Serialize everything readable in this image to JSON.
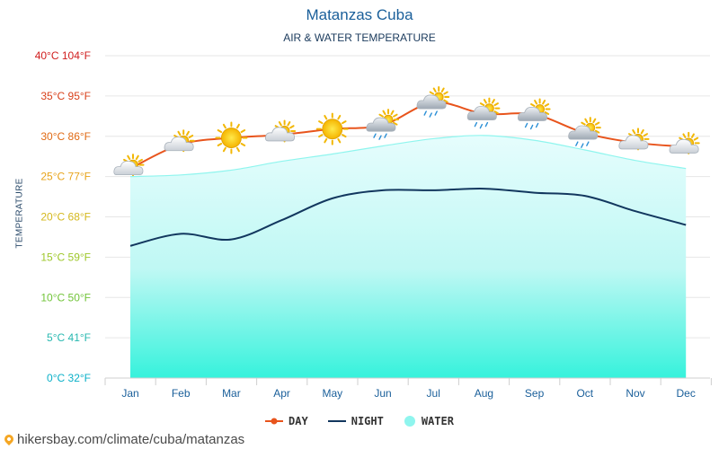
{
  "chart_data": {
    "type": "line",
    "title": "Matanzas Cuba",
    "subtitle": "AIR & WATER TEMPERATURE",
    "ylabel": "TEMPERATURE",
    "xlabel": "",
    "categories": [
      "Jan",
      "Feb",
      "Mar",
      "Apr",
      "May",
      "Jun",
      "Jul",
      "Aug",
      "Sep",
      "Oct",
      "Nov",
      "Dec"
    ],
    "ylim": [
      0,
      40
    ],
    "y_ticks": [
      {
        "value": 0,
        "label": "0°C 32°F",
        "color": "#0ab0c8"
      },
      {
        "value": 5,
        "label": "5°C 41°F",
        "color": "#27b8b0"
      },
      {
        "value": 10,
        "label": "10°C 50°F",
        "color": "#72c43a"
      },
      {
        "value": 15,
        "label": "15°C 59°F",
        "color": "#9ec72a"
      },
      {
        "value": 20,
        "label": "20°C 68°F",
        "color": "#d4b81e"
      },
      {
        "value": 25,
        "label": "25°C 77°F",
        "color": "#e8a41a"
      },
      {
        "value": 30,
        "label": "30°C 86°F",
        "color": "#e06a14"
      },
      {
        "value": 35,
        "label": "35°C 95°F",
        "color": "#d8401a"
      },
      {
        "value": 40,
        "label": "40°C 104°F",
        "color": "#d01e1e"
      }
    ],
    "series": [
      {
        "name": "DAY",
        "color": "#e8541c",
        "values": [
          26.0,
          29.0,
          29.8,
          30.2,
          30.9,
          31.4,
          34.2,
          32.8,
          32.7,
          30.4,
          29.2,
          28.7
        ]
      },
      {
        "name": "NIGHT",
        "color": "#12375e",
        "values": [
          16.4,
          17.9,
          17.2,
          19.6,
          22.3,
          23.3,
          23.3,
          23.5,
          23.0,
          22.6,
          20.7,
          19.0
        ]
      },
      {
        "name": "WATER",
        "color": "#8ff5ee",
        "values": [
          25.0,
          25.2,
          25.8,
          26.9,
          27.8,
          28.8,
          29.7,
          30.1,
          29.5,
          28.3,
          27.0,
          26.0
        ]
      }
    ],
    "weather_icons": [
      "partly-sunny",
      "partly-sunny",
      "sunny",
      "partly-sunny",
      "sunny",
      "partly-cloudy-rain",
      "partly-cloudy-rain",
      "partly-cloudy-rain",
      "partly-cloudy-rain",
      "partly-cloudy-rain",
      "partly-sunny",
      "partly-sunny"
    ],
    "legend": [
      "DAY",
      "NIGHT",
      "WATER"
    ],
    "grid": true,
    "legend_position": "bottom-center"
  },
  "footer": {
    "text": "hikersbay.com/climate/cuba/matanzas"
  }
}
